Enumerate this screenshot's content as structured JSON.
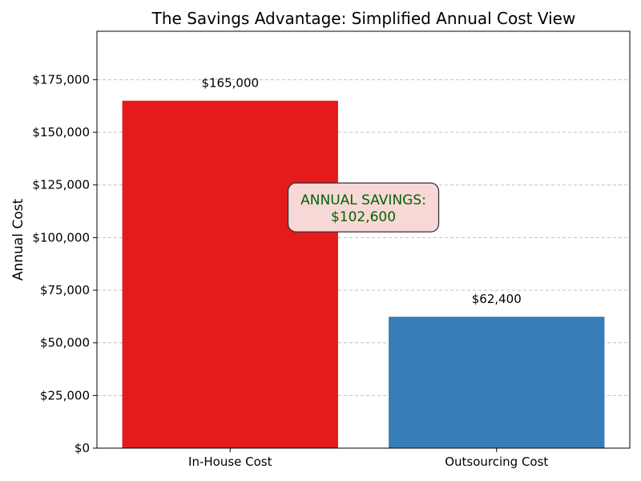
{
  "chart_data": {
    "type": "bar",
    "title": "The Savings Advantage: Simplified Annual Cost View",
    "xlabel": "",
    "ylabel": "Annual Cost",
    "categories": [
      "In-House Cost",
      "Outsourcing Cost"
    ],
    "values": [
      165000,
      62400
    ],
    "value_labels": [
      "$165,000",
      "$62,400"
    ],
    "colors": [
      "#e41a1c",
      "#377eb8"
    ],
    "ylim": [
      0,
      198000
    ],
    "yticks": [
      0,
      25000,
      50000,
      75000,
      100000,
      125000,
      150000,
      175000
    ],
    "ytick_labels": [
      "$0",
      "$25,000",
      "$50,000",
      "$75,000",
      "$100,000",
      "$125,000",
      "$150,000",
      "$175,000"
    ],
    "grid": "y-dashed",
    "annotation": {
      "line1": "ANNUAL SAVINGS:",
      "line2": "$102,600",
      "text_color": "#006400",
      "box_color": "#f8d7d7",
      "y_value": 113000
    }
  }
}
